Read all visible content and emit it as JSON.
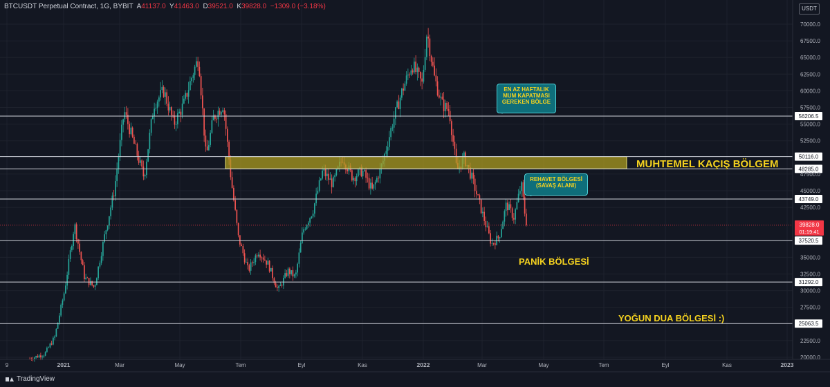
{
  "header": {
    "symbol": "BTCUSDT Perpetual Contract, 1G, BYBIT",
    "o_label": "A",
    "o_value": "41137.0",
    "h_label": "Y",
    "h_value": "41463.0",
    "l_label": "D",
    "l_value": "39521.0",
    "c_label": "K",
    "c_value": "39828.0",
    "change": "−1309.0 (−3.18%)"
  },
  "unit_label": "USDT",
  "footer": {
    "brand": "TradingView"
  },
  "colors": {
    "background": "#131722",
    "grid": "#1e222d",
    "up": "#26a69a",
    "down": "#ef5350",
    "level_line": "#d1d4dc",
    "price_tag": "#f23645",
    "zone_fill": "#b0a020",
    "annotation": "#f5d21f",
    "bubble": "#0f6e7a"
  },
  "zones": {
    "escape": "MUHTEMEL KAÇIŞ BÖLGEM",
    "panic": "PANİK BÖLGESİ",
    "pray": "YOĞUN DUA BÖLGESİ :)"
  },
  "bubbles": {
    "weekly": [
      "EN AZ HAFTALIK",
      "MUM KAPATMASI",
      "GEREKEN BÖLGE"
    ],
    "comfort": [
      "REHAVET BÖLGESİ",
      "(SAVAŞ ALANI)"
    ]
  },
  "chart_data": {
    "type": "candlestick",
    "symbol": "BTCUSDT Perpetual Contract",
    "interval": "1G",
    "exchange": "BYBIT",
    "ylim": [
      19800,
      72000
    ],
    "y_scale": "linear",
    "y_ticks": [
      "70000.0",
      "67500.0",
      "65000.0",
      "62500.0",
      "60000.0",
      "57500.0",
      "55000.0",
      "52500.0",
      "47500.0",
      "45000.0",
      "42500.0",
      "35000.0",
      "32500.0",
      "30000.0",
      "27500.0",
      "22500.0",
      "20000.0"
    ],
    "x_ticks": [
      "9",
      "2021",
      "Mar",
      "May",
      "Tem",
      "Eyl",
      "Kas",
      "2022",
      "Mar",
      "May",
      "Tem",
      "Eyl",
      "Kas",
      "2023"
    ],
    "grid": true,
    "last_price": "39828.0",
    "countdown": "01:19:41",
    "price_levels": [
      {
        "value": 56206.5,
        "label": "56206.5"
      },
      {
        "value": 50116.0,
        "label": "50116.0"
      },
      {
        "value": 48285.0,
        "label": "48285.0"
      },
      {
        "value": 43749.0,
        "label": "43749.0"
      },
      {
        "value": 37520.5,
        "label": "37520.5"
      },
      {
        "value": 31292.0,
        "label": "31292.0"
      },
      {
        "value": 25063.5,
        "label": "25063.5"
      }
    ],
    "highlighted_range": {
      "from": 48285.0,
      "to": 50116.0,
      "label": "MUHTEMEL KAÇIŞ BÖLGEM"
    },
    "annotations": [
      "EN AZ HAFTALIK MUM KAPATMASI GEREKEN BÖLGE",
      "REHAVET BÖLGESİ (SAVAŞ ALANI)",
      "PANİK BÖLGESİ",
      "YOĞUN DUA BÖLGESİ :)"
    ],
    "price_path": [
      [
        0,
        19800
      ],
      [
        0.03,
        20500
      ],
      [
        0.05,
        23000
      ],
      [
        0.07,
        30000
      ],
      [
        0.09,
        40000
      ],
      [
        0.11,
        32000
      ],
      [
        0.13,
        30500
      ],
      [
        0.15,
        38000
      ],
      [
        0.17,
        45000
      ],
      [
        0.19,
        57000
      ],
      [
        0.21,
        52000
      ],
      [
        0.23,
        47000
      ],
      [
        0.25,
        58000
      ],
      [
        0.27,
        60000
      ],
      [
        0.29,
        55000
      ],
      [
        0.31,
        58000
      ],
      [
        0.33,
        63000
      ],
      [
        0.34,
        65000
      ],
      [
        0.355,
        50000
      ],
      [
        0.37,
        56000
      ],
      [
        0.39,
        58000
      ],
      [
        0.405,
        47000
      ],
      [
        0.42,
        38000
      ],
      [
        0.44,
        33000
      ],
      [
        0.46,
        36000
      ],
      [
        0.48,
        34000
      ],
      [
        0.5,
        30000
      ],
      [
        0.52,
        33000
      ],
      [
        0.535,
        32000
      ],
      [
        0.55,
        39000
      ],
      [
        0.57,
        42000
      ],
      [
        0.59,
        48000
      ],
      [
        0.61,
        46000
      ],
      [
        0.63,
        50000
      ],
      [
        0.65,
        47000
      ],
      [
        0.67,
        48000
      ],
      [
        0.69,
        45000
      ],
      [
        0.71,
        49000
      ],
      [
        0.73,
        55000
      ],
      [
        0.75,
        60000
      ],
      [
        0.77,
        64000
      ],
      [
        0.79,
        61000
      ],
      [
        0.8,
        69000
      ],
      [
        0.815,
        62000
      ],
      [
        0.83,
        58000
      ],
      [
        0.845,
        57000
      ],
      [
        0.86,
        48000
      ],
      [
        0.875,
        50000
      ],
      [
        0.89,
        47000
      ],
      [
        0.91,
        42000
      ],
      [
        0.93,
        37000
      ],
      [
        0.945,
        38000
      ],
      [
        0.96,
        43000
      ],
      [
        0.975,
        41000
      ],
      [
        0.99,
        46000
      ],
      [
        1.0,
        39828
      ]
    ]
  }
}
